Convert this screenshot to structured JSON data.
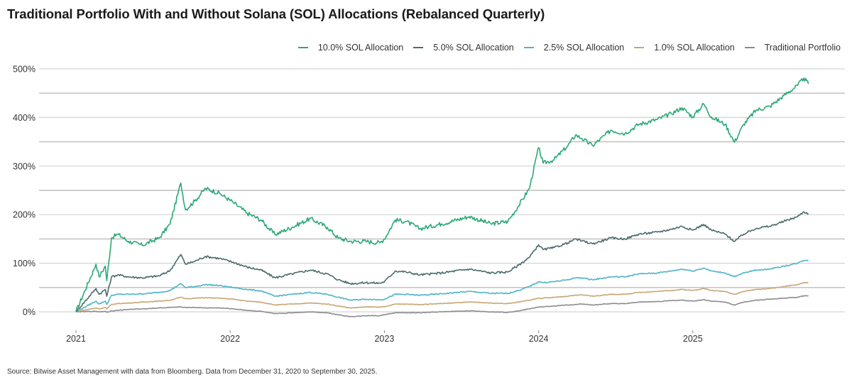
{
  "chart_data": {
    "type": "line",
    "title": "Traditional Portfolio With and Without Solana (SOL) Allocations (Rebalanced Quarterly)",
    "xlabel": "",
    "ylabel": "",
    "x_ticks": [
      "2021",
      "2022",
      "2023",
      "2024",
      "2025"
    ],
    "x_tick_values": [
      2021,
      2022,
      2023,
      2024,
      2025
    ],
    "xlim": [
      2020.88,
      2025.9
    ],
    "y_ticks": [
      "0%",
      "100%",
      "200%",
      "300%",
      "400%",
      "500%"
    ],
    "y_tick_values": [
      0,
      100,
      200,
      300,
      400,
      500
    ],
    "ylim": [
      -10,
      510
    ],
    "gridlines_y": [
      0,
      50,
      100,
      150,
      200,
      250,
      300,
      350,
      400,
      450,
      500
    ],
    "grid": true,
    "legend_position": "top-right",
    "x": [
      2021.0,
      2021.13,
      2021.15,
      2021.19,
      2021.2,
      2021.23,
      2021.27,
      2021.34,
      2021.43,
      2021.54,
      2021.61,
      2021.68,
      2021.71,
      2021.77,
      2021.84,
      2021.93,
      2022.02,
      2022.11,
      2022.2,
      2022.29,
      2022.4,
      2022.52,
      2022.63,
      2022.7,
      2022.78,
      2022.88,
      2022.97,
      2023.0,
      2023.07,
      2023.14,
      2023.23,
      2023.37,
      2023.55,
      2023.69,
      2023.8,
      2023.87,
      2023.94,
      2024.0,
      2024.03,
      2024.1,
      2024.19,
      2024.24,
      2024.28,
      2024.35,
      2024.47,
      2024.56,
      2024.65,
      2024.77,
      2024.86,
      2024.93,
      2025.0,
      2025.07,
      2025.12,
      2025.21,
      2025.27,
      2025.33,
      2025.41,
      2025.5,
      2025.59,
      2025.68,
      2025.72,
      2025.75
    ],
    "series": [
      {
        "name": "10.0% SOL Allocation",
        "color": "#2aa876",
        "values": [
          0,
          98,
          72,
          94,
          64,
          152,
          160,
          145,
          137,
          152,
          181,
          265,
          210,
          228,
          254,
          244,
          225,
          203,
          189,
          159,
          174,
          192,
          174,
          152,
          145,
          145,
          142,
          150,
          189,
          186,
          171,
          181,
          196,
          181,
          186,
          218,
          254,
          338,
          306,
          313,
          342,
          364,
          357,
          342,
          374,
          367,
          386,
          396,
          408,
          420,
          401,
          428,
          401,
          386,
          349,
          386,
          415,
          423,
          445,
          466,
          481,
          469
        ]
      },
      {
        "name": "5.0% SOL Allocation",
        "color": "#4b6b6b",
        "values": [
          0,
          48,
          36,
          46,
          32,
          72,
          76,
          72,
          70,
          74,
          85,
          118,
          98,
          104,
          114,
          110,
          102,
          92,
          86,
          70,
          78,
          86,
          78,
          66,
          58,
          60,
          59,
          62,
          84,
          82,
          76,
          80,
          88,
          80,
          82,
          96,
          112,
          138,
          128,
          132,
          142,
          150,
          146,
          140,
          152,
          150,
          160,
          164,
          170,
          176,
          168,
          180,
          168,
          160,
          145,
          160,
          172,
          176,
          186,
          196,
          206,
          202
        ]
      },
      {
        "name": "2.5% SOL Allocation",
        "color": "#4fb3c8",
        "values": [
          0,
          22,
          16,
          22,
          15,
          34,
          36,
          36,
          37,
          40,
          44,
          58,
          50,
          52,
          56,
          54,
          50,
          46,
          43,
          32,
          36,
          40,
          36,
          30,
          24,
          26,
          25,
          26,
          36,
          36,
          34,
          37,
          42,
          38,
          38,
          44,
          52,
          62,
          60,
          62,
          66,
          70,
          70,
          66,
          72,
          72,
          78,
          80,
          84,
          88,
          84,
          90,
          84,
          80,
          72,
          80,
          86,
          88,
          94,
          100,
          106,
          106
        ]
      },
      {
        "name": "1.0% SOL Allocation",
        "color": "#c9a574",
        "values": [
          0,
          8,
          6,
          9,
          6,
          15,
          17,
          18,
          20,
          22,
          24,
          30,
          27,
          28,
          29,
          28,
          26,
          22,
          20,
          14,
          16,
          18,
          16,
          12,
          8,
          10,
          10,
          10,
          16,
          16,
          15,
          17,
          20,
          18,
          17,
          20,
          24,
          28,
          28,
          30,
          32,
          34,
          35,
          32,
          36,
          36,
          40,
          42,
          44,
          46,
          44,
          48,
          44,
          42,
          36,
          42,
          46,
          48,
          52,
          56,
          60,
          60
        ]
      },
      {
        "name": "Traditional Portfolio",
        "color": "#8c8c8c",
        "values": [
          0,
          1,
          0,
          1,
          -1,
          2,
          3,
          5,
          6,
          8,
          9,
          10,
          9,
          9,
          8,
          8,
          6,
          3,
          1,
          -4,
          -2,
          0,
          -2,
          -6,
          -10,
          -8,
          -8,
          -6,
          -2,
          -2,
          -2,
          0,
          2,
          0,
          -1,
          2,
          6,
          10,
          10,
          12,
          14,
          15,
          16,
          14,
          17,
          17,
          20,
          21,
          23,
          24,
          22,
          25,
          22,
          20,
          14,
          20,
          24,
          26,
          28,
          30,
          33,
          33
        ]
      }
    ]
  },
  "source_note": "Source: Bitwise Asset Management with data from Bloomberg. Data from December 31, 2020 to September 30, 2025."
}
